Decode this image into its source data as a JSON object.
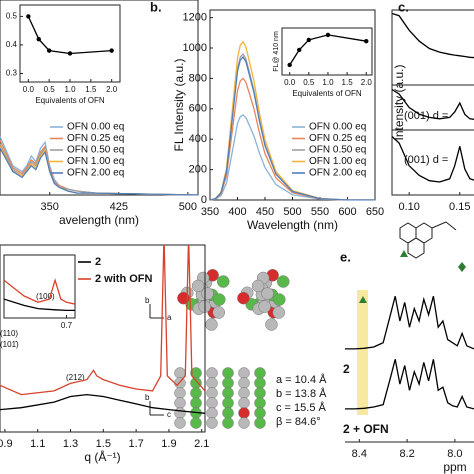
{
  "chart_data": [
    {
      "type": "line",
      "xlabel": "avelength (nm)",
      "x": [
        296,
        310,
        320,
        325,
        330,
        335,
        340,
        345,
        350,
        355,
        360,
        370,
        380,
        400,
        450,
        511
      ],
      "xlim": [
        296,
        511
      ],
      "xticks": [
        350,
        425,
        500
      ],
      "ylim": [
        0,
        1
      ],
      "legend": "right",
      "series": [
        {
          "name": "OFN 0.00 eq",
          "color": "#8ab4d8",
          "values": [
            0.3,
            0.15,
            0.12,
            0.15,
            0.2,
            0.17,
            0.24,
            0.27,
            0.15,
            0.08,
            0.05,
            0.03,
            0.02,
            0.01,
            0.005,
            0
          ]
        },
        {
          "name": "OFN 0.25 eq",
          "color": "#e8845a",
          "values": [
            0.28,
            0.14,
            0.11,
            0.14,
            0.18,
            0.16,
            0.22,
            0.25,
            0.14,
            0.07,
            0.05,
            0.03,
            0.02,
            0.01,
            0.005,
            0
          ]
        },
        {
          "name": "OFN 0.50 eq",
          "color": "#a0a0a0",
          "values": [
            0.26,
            0.13,
            0.1,
            0.13,
            0.17,
            0.15,
            0.21,
            0.24,
            0.13,
            0.07,
            0.04,
            0.03,
            0.02,
            0.01,
            0.005,
            0
          ]
        },
        {
          "name": "OFN 1.00 eq",
          "color": "#f2b33d",
          "values": [
            0.25,
            0.12,
            0.1,
            0.12,
            0.16,
            0.14,
            0.2,
            0.23,
            0.12,
            0.06,
            0.04,
            0.02,
            0.01,
            0.01,
            0.005,
            0
          ]
        },
        {
          "name": "OFN 2.00 eq",
          "color": "#4f7fbf",
          "values": [
            0.24,
            0.12,
            0.09,
            0.12,
            0.15,
            0.13,
            0.19,
            0.22,
            0.12,
            0.06,
            0.04,
            0.02,
            0.01,
            0.01,
            0.005,
            0
          ]
        }
      ]
    },
    {
      "type": "line",
      "xlabel": "Equivalents of OFN",
      "markers": true,
      "x": [
        0,
        0.25,
        0.5,
        1,
        2
      ],
      "xlim": [
        -0.2,
        2.2
      ],
      "xticks": [
        {
          "value": 0,
          "label": "0.0"
        },
        {
          "value": 0.5,
          "label": "0.5"
        },
        {
          "value": 1,
          "label": "1.0"
        },
        {
          "value": 1.5,
          "label": "1.5"
        },
        {
          "value": 2,
          "label": "2.0"
        }
      ],
      "ylim": [
        0.27,
        0.54
      ],
      "yticks": [
        0.3,
        0.4,
        0.5
      ],
      "series": [
        {
          "color": "#000000",
          "values": [
            0.5,
            0.42,
            0.38,
            0.37,
            0.38
          ]
        }
      ]
    },
    {
      "type": "line",
      "label": "b.",
      "xlabel": "Wavelength (nm)",
      "ylabel": "FL Intensity (a.u.)",
      "x": [
        350,
        360,
        370,
        380,
        390,
        400,
        405,
        410,
        415,
        420,
        430,
        440,
        450,
        470,
        500,
        550,
        600,
        650
      ],
      "xlim": [
        350,
        650
      ],
      "xticks": [
        350,
        400,
        450,
        500,
        550,
        600,
        650
      ],
      "ylim": [
        0,
        1250
      ],
      "yticks": [
        0,
        200,
        400,
        600,
        800,
        1000,
        1200
      ],
      "legend": "right",
      "series": [
        {
          "name": "OFN 0.00 eq",
          "color": "#8ab4d8",
          "values": [
            0,
            6,
            28,
            112,
            308,
            504,
            549,
            560,
            543,
            504,
            420,
            308,
            213,
            101,
            34,
            6,
            0,
            0
          ]
        },
        {
          "name": "OFN 0.25 eq",
          "color": "#e8845a",
          "values": [
            0,
            8,
            40,
            160,
            440,
            720,
            784,
            800,
            776,
            720,
            600,
            440,
            304,
            144,
            48,
            8,
            0,
            0
          ]
        },
        {
          "name": "OFN 0.50 eq",
          "color": "#a0a0a0",
          "values": [
            0,
            10,
            48,
            192,
            528,
            864,
            941,
            960,
            931,
            864,
            720,
            528,
            365,
            173,
            58,
            10,
            0,
            0
          ]
        },
        {
          "name": "OFN 1.00 eq",
          "color": "#f2b33d",
          "values": [
            0,
            10,
            52,
            208,
            572,
            936,
            1019,
            1040,
            1009,
            936,
            780,
            572,
            395,
            187,
            62,
            10,
            0,
            0
          ]
        },
        {
          "name": "OFN 2.00 eq",
          "color": "#4f7fbf",
          "values": [
            0,
            9,
            47,
            188,
            517,
            846,
            921,
            940,
            912,
            846,
            705,
            517,
            357,
            169,
            56,
            9,
            0,
            0
          ]
        }
      ]
    },
    {
      "type": "line",
      "ylabel": "FL@ 410 nm",
      "xlabel": "Equivalents of OFN",
      "markers": true,
      "x": [
        0,
        0.25,
        0.5,
        1,
        2
      ],
      "xlim": [
        -0.2,
        2.15
      ],
      "xticks": [
        {
          "value": 0,
          "label": "0.0"
        },
        {
          "value": 0.5,
          "label": "0.5"
        },
        {
          "value": 1,
          "label": "1.0"
        },
        {
          "value": 1.5,
          "label": "1.5"
        },
        {
          "value": 2,
          "label": "2.0"
        }
      ],
      "ylim": [
        400,
        1150
      ],
      "series": [
        {
          "color": "#000000",
          "values": [
            560,
            800,
            960,
            1040,
            940
          ]
        }
      ]
    },
    {
      "type": "line",
      "label": "c.",
      "ylabel": "Intensity (a.u.)",
      "x": [
        0.083,
        0.09,
        0.1,
        0.11,
        0.12,
        0.13,
        0.14,
        0.145,
        0.15,
        0.155,
        0.16,
        0.17
      ],
      "xlim": [
        0.083,
        0.17
      ],
      "xticks": [
        {
          "value": 0.1,
          "label": "0.10"
        },
        {
          "value": 0.15,
          "label": "0.15"
        }
      ],
      "ylim": [
        0,
        1
      ],
      "annotations": [
        "(001)  d = ",
        "(001)  d = "
      ],
      "series": [
        {
          "color": "#000000",
          "values": [
            0.98,
            0.95,
            0.75,
            0.6,
            0.5,
            0.45,
            0.42,
            0.41,
            0.4,
            0.39,
            0.38,
            0.37
          ]
        },
        {
          "color": "#000000",
          "values": [
            0.9,
            0.8,
            0.5,
            0.35,
            0.28,
            0.25,
            0.28,
            0.4,
            0.6,
            0.35,
            0.25,
            0.22
          ]
        },
        {
          "color": "#000000",
          "values": [
            0.9,
            0.8,
            0.45,
            0.3,
            0.22,
            0.2,
            0.25,
            0.45,
            0.75,
            0.4,
            0.25,
            0.2
          ]
        }
      ]
    },
    {
      "type": "line",
      "xlabel": "q (Å⁻¹)",
      "xlim": [
        0.87,
        2.12
      ],
      "xticks": [
        0.9,
        1.1,
        1.3,
        1.5,
        1.7,
        1.9,
        2.1
      ],
      "ylim": [
        0,
        1
      ],
      "legend": "top-right",
      "annotations": [
        "(110)",
        "(101̄)",
        "(212)"
      ],
      "series": [
        {
          "name": "2",
          "color": "#000000",
          "x": [
            0.87,
            1.0,
            1.2,
            1.3,
            1.4,
            1.5,
            1.6,
            1.7,
            1.8,
            1.9,
            2.0,
            2.12
          ],
          "values": [
            0.12,
            0.13,
            0.16,
            0.19,
            0.2,
            0.19,
            0.17,
            0.15,
            0.13,
            0.12,
            0.11,
            0.1
          ]
        },
        {
          "name": "2 with OFN",
          "color": "#d9412b",
          "x": [
            0.87,
            1.0,
            1.2,
            1.3,
            1.4,
            1.44,
            1.46,
            1.5,
            1.6,
            1.7,
            1.8,
            1.85,
            1.87,
            1.89,
            1.95,
            2.0,
            2.02,
            2.04,
            2.12
          ],
          "values": [
            0.25,
            0.2,
            0.22,
            0.26,
            0.28,
            0.33,
            0.3,
            0.28,
            0.25,
            0.23,
            0.22,
            0.3,
            1.05,
            0.3,
            0.25,
            0.3,
            1.05,
            0.3,
            0.22
          ]
        }
      ]
    },
    {
      "type": "line",
      "xlim": [
        0.48,
        0.73
      ],
      "xticks": [
        0.7
      ],
      "ylim": [
        0,
        1
      ],
      "annotations": [
        "(100)"
      ],
      "series": [
        {
          "color": "#d9412b",
          "x": [
            0.48,
            0.55,
            0.6,
            0.64,
            0.66,
            0.68,
            0.7,
            0.73
          ],
          "values": [
            0.6,
            0.35,
            0.25,
            0.3,
            0.6,
            0.3,
            0.25,
            0.22
          ]
        },
        {
          "color": "#000000",
          "x": [
            0.48,
            0.55,
            0.6,
            0.66,
            0.7,
            0.73
          ],
          "values": [
            0.3,
            0.2,
            0.15,
            0.13,
            0.12,
            0.12
          ]
        }
      ]
    },
    {
      "type": "line",
      "label": "e.",
      "xlabel": "ppm",
      "x": [
        8.46,
        8.42,
        8.38,
        8.34,
        8.3,
        8.27,
        8.25,
        8.23,
        8.21,
        8.19,
        8.17,
        8.15,
        8.13,
        8.11,
        8.09,
        8.07,
        8.05,
        8.03,
        8.01,
        7.99,
        7.97,
        7.95,
        7.92
      ],
      "xlim": [
        8.46,
        7.92
      ],
      "xticks": [
        8.4,
        8.2,
        {
          "value": 8,
          "label": "8.0"
        }
      ],
      "ylim": [
        0,
        1
      ],
      "series": [
        {
          "name": "2",
          "color": "#000000",
          "values": [
            0.05,
            0.05,
            0.06,
            0.08,
            0.15,
            0.6,
            0.9,
            0.5,
            0.8,
            0.4,
            0.7,
            0.5,
            0.85,
            0.6,
            0.9,
            0.4,
            0.5,
            0.2,
            0.15,
            0.1,
            0.3,
            0.1,
            0.05
          ]
        },
        {
          "name": "2 + OFN",
          "color": "#000000",
          "values": [
            0.05,
            0.05,
            0.06,
            0.08,
            0.12,
            0.55,
            0.85,
            0.45,
            0.75,
            0.35,
            0.65,
            0.45,
            0.8,
            0.5,
            0.85,
            0.35,
            0.4,
            0.15,
            0.1,
            0.08,
            0.25,
            0.08,
            0.05
          ]
        }
      ]
    }
  ],
  "crystal": {
    "params": [
      "a = 10.4 Å",
      "b = 13.8 Å",
      "c = 15.5 Å",
      "β = 84.6°"
    ],
    "axes_top": [
      "b",
      "a"
    ],
    "axes_bottom": [
      "b",
      "c"
    ]
  }
}
